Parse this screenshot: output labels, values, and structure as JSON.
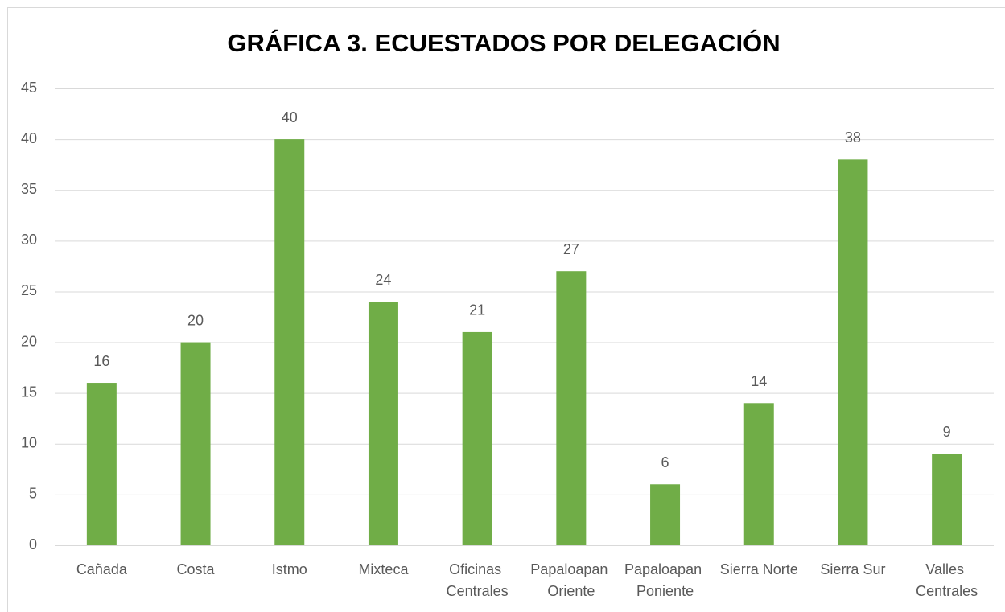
{
  "chart_data": {
    "type": "bar",
    "title": "GRÁFICA 3. ECUESTADOS POR DELEGACIÓN",
    "categories": [
      "Cañada",
      "Costa",
      "Istmo",
      "Mixteca",
      "Oficinas Centrales",
      "Papaloapan Oriente",
      "Papaloapan Poniente",
      "Sierra Norte",
      "Sierra Sur",
      "Valles Centrales"
    ],
    "values": [
      16,
      20,
      40,
      24,
      21,
      27,
      6,
      14,
      38,
      9
    ],
    "color": "#70ad47",
    "ylim": [
      0,
      45
    ],
    "yticks": [
      0,
      5,
      10,
      15,
      20,
      25,
      30,
      35,
      40,
      45
    ],
    "grid": true,
    "data_labels": true
  }
}
